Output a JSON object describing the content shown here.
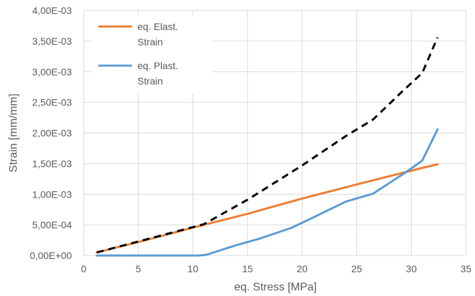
{
  "chart_data": {
    "type": "line",
    "title": "",
    "xlabel": "eq. Stress [MPa]",
    "ylabel": "Strain [mm/mm]",
    "xlim": [
      0,
      35
    ],
    "ylim": [
      0,
      0.004
    ],
    "x_ticks": [
      0,
      5,
      10,
      15,
      20,
      25,
      30,
      35
    ],
    "x_tick_labels": [
      "0",
      "5",
      "10",
      "15",
      "20",
      "25",
      "30",
      "35"
    ],
    "y_ticks": [
      0,
      0.0005,
      0.001,
      0.0015,
      0.002,
      0.0025,
      0.003,
      0.0035,
      0.004
    ],
    "y_tick_labels": [
      "0,00E+00",
      "5,00E-04",
      "1,00E-03",
      "1,50E-03",
      "2,00E-03",
      "2,50E-03",
      "3,00E-03",
      "3,50E-03",
      "4,00E-03"
    ],
    "grid": true,
    "legend_position": "top-left",
    "series": [
      {
        "name": "eq. Elast. Strain",
        "legend_lines": [
          "eq. Elast.",
          "Strain"
        ],
        "color": "#ED7D31",
        "dash": "solid",
        "x": [
          1.2,
          5,
          11,
          15,
          20,
          25,
          31,
          32.4
        ],
        "y": [
          5e-05,
          0.00022,
          0.0005,
          0.00068,
          0.00093,
          0.00116,
          0.00143,
          0.00149
        ]
      },
      {
        "name": "eq. Plast. Strain",
        "legend_lines": [
          "eq. Plast.",
          "Strain"
        ],
        "color": "#5B9BD5",
        "dash": "solid",
        "x": [
          1.2,
          10.5,
          11.2,
          14,
          16,
          19,
          21,
          24,
          26.5,
          29.5,
          31,
          32.4
        ],
        "y": [
          0,
          0,
          1e-05,
          0.00017,
          0.00027,
          0.00045,
          0.00062,
          0.00088,
          0.00101,
          0.00136,
          0.00155,
          0.00206
        ]
      },
      {
        "color": "#000000",
        "dash": "dashed",
        "x": [
          1.2,
          11,
          15,
          20,
          24,
          26.5,
          29,
          31,
          32.4
        ],
        "y": [
          5e-05,
          0.00051,
          0.00091,
          0.00147,
          0.00195,
          0.00222,
          0.00265,
          0.00298,
          0.00356
        ]
      }
    ]
  }
}
